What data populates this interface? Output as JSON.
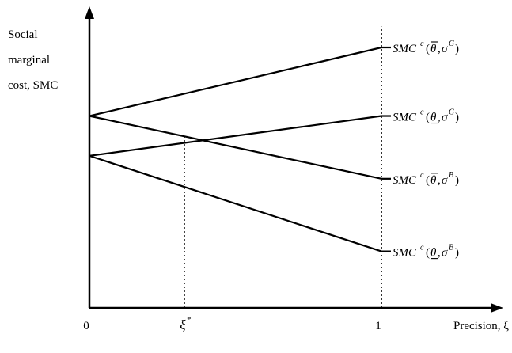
{
  "chart_data": {
    "type": "line",
    "ylabel": [
      "Social",
      "marginal",
      "cost, SMC"
    ],
    "xlabel": "Precision, ξ",
    "x_ticks": [
      {
        "value": 0,
        "label": "0"
      },
      {
        "value": 0.325,
        "label": "ξ",
        "sup": "*"
      },
      {
        "value": 1,
        "label": "1"
      }
    ],
    "xlim": [
      0,
      1.22
    ],
    "ylim": [
      0,
      1
    ],
    "grid": false,
    "legend": "none",
    "axis_color": "#000000",
    "line_color": "#000000",
    "series": [
      {
        "name": "SMC^c(θ̄, σ^G)",
        "x": [
          0,
          1
        ],
        "y": [
          0.737,
          1.0
        ]
      },
      {
        "name": "SMC^c(θ̲, σ^G)",
        "x": [
          0,
          1
        ],
        "y": [
          0.584,
          0.737
        ]
      },
      {
        "name": "SMC^c(θ̄, σ^B)",
        "x": [
          0,
          1
        ],
        "y": [
          0.737,
          0.496
        ]
      },
      {
        "name": "SMC^c(θ̲, σ^B)",
        "x": [
          0,
          1
        ],
        "y": [
          0.584,
          0.217
        ]
      }
    ],
    "series_labels": [
      {
        "prefix": "SMC",
        "sup1": "c",
        "theta": "θ",
        "bar": "over",
        "sigma": "σ",
        "sup2": "G"
      },
      {
        "prefix": "SMC",
        "sup1": "c",
        "theta": "θ",
        "bar": "under",
        "sigma": "σ",
        "sup2": "G"
      },
      {
        "prefix": "SMC",
        "sup1": "c",
        "theta": "θ",
        "bar": "over",
        "sigma": "σ",
        "sup2": "B"
      },
      {
        "prefix": "SMC",
        "sup1": "c",
        "theta": "θ",
        "bar": "under",
        "sigma": "σ",
        "sup2": "B"
      }
    ],
    "reference_lines": [
      {
        "x": 0.325,
        "style": "dotted",
        "to_y": 0.655
      },
      {
        "x": 1,
        "style": "dotted",
        "to_y": 1.08
      }
    ]
  }
}
